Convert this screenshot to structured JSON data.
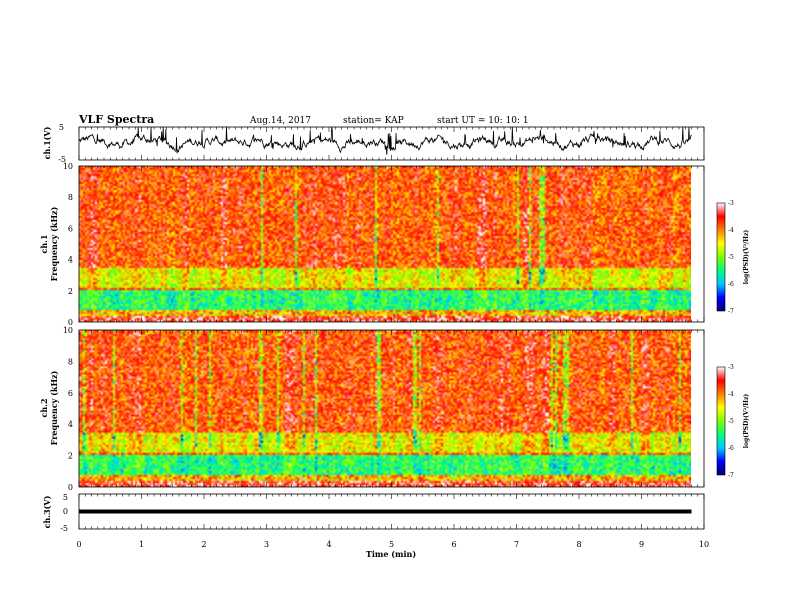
{
  "header": {
    "title": "VLF Spectra",
    "date": "Aug.14, 2017",
    "station": "station= KAP",
    "start": "start  UT =   10: 10: 1"
  },
  "chart_data": [
    {
      "type": "line",
      "panel": "waveform-ch1",
      "ylabel": "ch.1(V)",
      "ylim": [
        -5,
        5
      ],
      "yticks": [
        "5",
        "-5"
      ],
      "xlim": [
        0,
        10
      ],
      "data_end_min": 9.8,
      "baseline_v": 0.5,
      "amplitude_v": 2.5,
      "color": "#000000"
    },
    {
      "type": "heatmap",
      "panel": "spectrogram-ch1",
      "ylabel_top": "ch.1",
      "ylabel": "Frequency  (kHz)",
      "ylim": [
        0,
        10
      ],
      "yticks": [
        "0",
        "2",
        "4",
        "6",
        "8",
        "10"
      ],
      "xlim": [
        0,
        10
      ],
      "data_end_min": 9.8,
      "colorbar": {
        "label": "log(PSD)(V²/Hz)",
        "range": [
          -7,
          -3
        ],
        "ticks": [
          "-3",
          "-4",
          "-5",
          "-6",
          "-7"
        ]
      }
    },
    {
      "type": "heatmap",
      "panel": "spectrogram-ch2",
      "ylabel_top": "ch.2",
      "ylabel": "Frequency  (kHz)",
      "ylim": [
        0,
        10
      ],
      "yticks": [
        "0",
        "2",
        "4",
        "6",
        "8",
        "10"
      ],
      "xlim": [
        0,
        10
      ],
      "data_end_min": 9.8,
      "colorbar": {
        "label": "log(PSD)(V²/Hz)",
        "range": [
          -7,
          -3
        ],
        "ticks": [
          "-3",
          "-4",
          "-5",
          "-6",
          "-7"
        ]
      }
    },
    {
      "type": "line",
      "panel": "waveform-ch3",
      "ylabel": "ch.3(V)",
      "ylim": [
        -5,
        5
      ],
      "yticks": [
        "5",
        "0",
        "-5"
      ],
      "xlim": [
        0,
        10
      ],
      "xlabel": "Time  (min)",
      "xticks": [
        "0",
        "1",
        "2",
        "3",
        "4",
        "5",
        "6",
        "7",
        "8",
        "9",
        "10"
      ],
      "data_end_min": 9.8,
      "level_v": 0,
      "color": "#000000"
    }
  ],
  "colors": {
    "scale": [
      "#000070",
      "#0000ff",
      "#00c8ff",
      "#00ff7f",
      "#7fff00",
      "#ffff00",
      "#ff8000",
      "#ff0000",
      "#ffffff"
    ]
  }
}
